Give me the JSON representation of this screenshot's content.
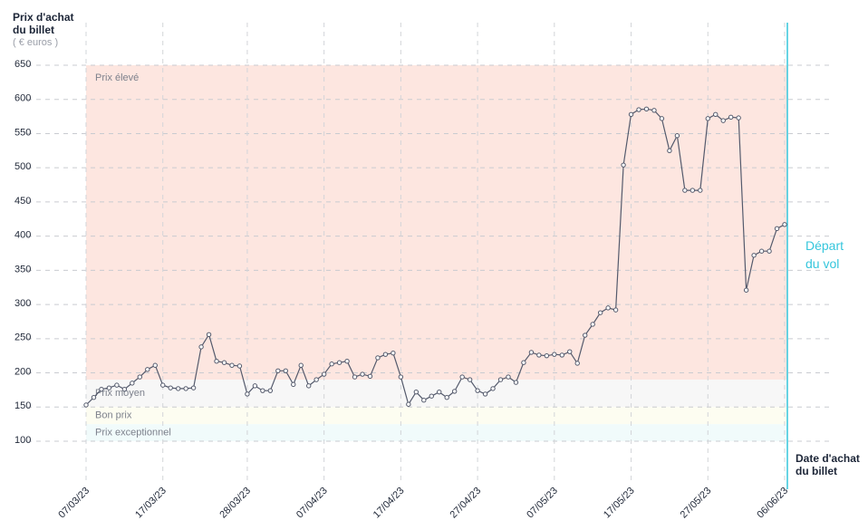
{
  "chart_data": {
    "type": "line",
    "y_label": "Prix d'achat du billet",
    "y_unit": "( € euros )",
    "x_label": "Date d'achat du billet",
    "annotation": "Départ du vol",
    "categories": [
      "07/03/23",
      null,
      null,
      null,
      null,
      null,
      null,
      null,
      null,
      null,
      "17/03/23",
      null,
      null,
      null,
      null,
      null,
      null,
      null,
      null,
      null,
      null,
      "28/03/23",
      null,
      null,
      null,
      null,
      null,
      null,
      null,
      null,
      null,
      "07/04/23",
      null,
      null,
      null,
      null,
      null,
      null,
      null,
      null,
      null,
      "17/04/23",
      null,
      null,
      null,
      null,
      null,
      null,
      null,
      null,
      null,
      "27/04/23",
      null,
      null,
      null,
      null,
      null,
      null,
      null,
      null,
      null,
      "07/05/23",
      null,
      null,
      null,
      null,
      null,
      null,
      null,
      null,
      null,
      "17/05/23",
      null,
      null,
      null,
      null,
      null,
      null,
      null,
      null,
      null,
      "27/05/23",
      null,
      null,
      null,
      null,
      null,
      null,
      null,
      null,
      null,
      "06/06/23"
    ],
    "values": [
      153,
      164,
      176,
      178,
      182,
      176,
      185,
      194,
      205,
      211,
      182,
      178,
      177,
      177,
      178,
      238,
      256,
      217,
      215,
      211,
      210,
      169,
      181,
      174,
      174,
      203,
      203,
      183,
      211,
      181,
      190,
      198,
      213,
      215,
      217,
      194,
      198,
      195,
      222,
      227,
      229,
      194,
      154,
      172,
      160,
      166,
      172,
      164,
      173,
      194,
      190,
      174,
      169,
      177,
      190,
      194,
      186,
      215,
      230,
      226,
      225,
      227,
      226,
      231,
      214,
      255,
      271,
      288,
      295,
      292,
      504,
      578,
      585,
      586,
      584,
      572,
      525,
      547,
      467,
      467,
      467,
      572,
      578,
      569,
      574,
      573,
      321,
      372,
      378,
      378,
      411,
      417
    ],
    "color": "#545a6c",
    "bands": [
      {
        "name": "Prix élevé",
        "from": 190,
        "to": 650,
        "color": "#fde6e0"
      },
      {
        "name": "Prix moyen",
        "from": 150,
        "to": 190,
        "color": "#f7f7f7"
      },
      {
        "name": "Bon prix",
        "from": 125,
        "to": 150,
        "color": "#fdfdf1"
      },
      {
        "name": "Prix exceptionnel",
        "from": 100,
        "to": 125,
        "color": "#f1fbfb"
      }
    ],
    "ylim": [
      30,
      650
    ],
    "yticks": [
      100,
      150,
      200,
      250,
      300,
      350,
      400,
      450,
      500,
      550,
      600,
      650
    ],
    "grid": true,
    "marker_color": "#35c6dc"
  }
}
